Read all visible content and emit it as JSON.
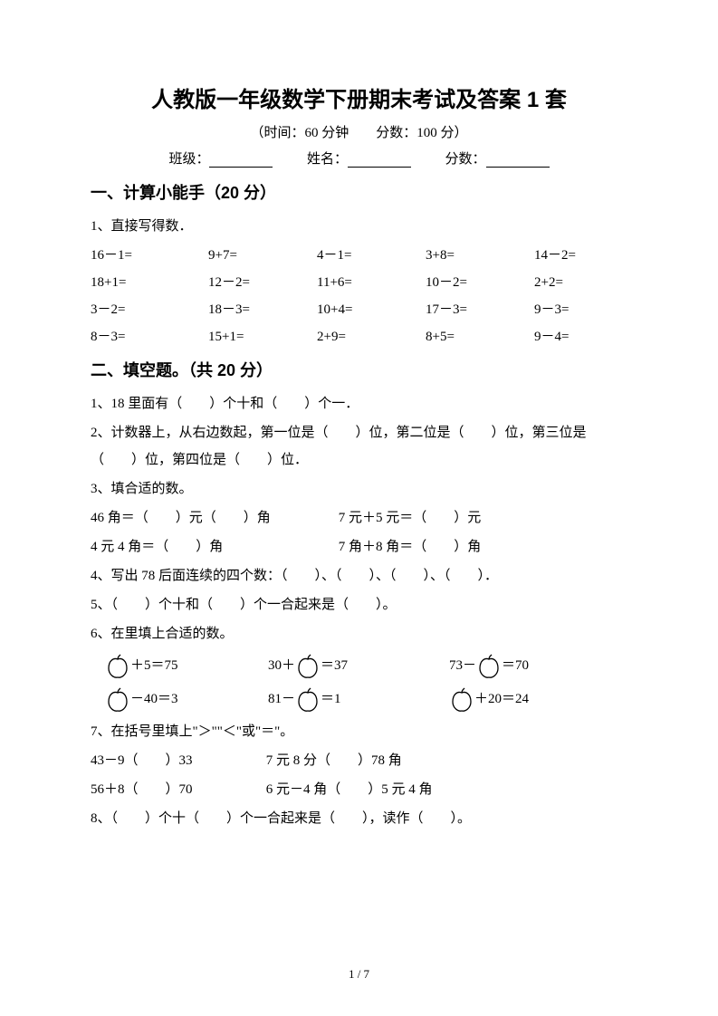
{
  "title": "人教版一年级数学下册期末考试及答案 1 套",
  "subtitle": "（时间：60 分钟　　分数：100 分）",
  "info": {
    "class_label": "班级：",
    "name_label": "姓名：",
    "score_label": "分数："
  },
  "section1": {
    "heading": "一、计算小能手（20 分）",
    "q1_label": "1、直接写得数．",
    "rows": [
      [
        "16－1=",
        "9+7=",
        "4－1=",
        "3+8=",
        "14－2="
      ],
      [
        "18+1=",
        "12－2=",
        "11+6=",
        "10－2=",
        "2+2="
      ],
      [
        "3－2=",
        "18－3=",
        "10+4=",
        "17－3=",
        "9－3="
      ],
      [
        "8－3=",
        "15+1=",
        "2+9=",
        "8+5=",
        "9－4="
      ]
    ]
  },
  "section2": {
    "heading": "二、填空题。（共 20 分）",
    "q1": "1、18 里面有（　　）个十和（　　）个一．",
    "q2": "2、计数器上，从右边数起，第一位是（　　）位，第二位是（　　）位，第三位是（　　）位，第四位是（　　）位．",
    "q3_label": "3、填合适的数。",
    "q3_line1_a": "46 角＝（　　）元（　　）角",
    "q3_line1_b": "7 元＋5 元＝（　　）元",
    "q3_line2_a": "4 元 4 角＝（　　）角",
    "q3_line2_b": "7 角＋8 角＝（　　）角",
    "q4": "4、写出 78 后面连续的四个数：（　　）、（　　）、（　　）、（　　）．",
    "q5": "5、（　　）个十和（　　）个一合起来是（　　）。",
    "q6_label": "6、在里填上合适的数。",
    "q6_row1": [
      {
        "pre": "",
        "apple": true,
        "post": "＋5＝75"
      },
      {
        "pre": "30＋",
        "apple": true,
        "post": "＝37"
      },
      {
        "pre": "73－",
        "apple": true,
        "post": "＝70"
      }
    ],
    "q6_row2": [
      {
        "pre": "",
        "apple": true,
        "post": "－40＝3"
      },
      {
        "pre": "81－",
        "apple": true,
        "post": "＝1"
      },
      {
        "pre": "",
        "apple": true,
        "post": "＋20＝24"
      }
    ],
    "q7_label": "7、在括号里填上\"＞\"\"＜\"或\"＝\"。",
    "q7_line1_a": "43－9（　　）33",
    "q7_line1_b": "7 元 8 分（　　）78 角",
    "q7_line2_a": "56＋8（　　）70",
    "q7_line2_b": "6 元－4 角（　　）5 元 4 角",
    "q8": "8、（　　）个十（　　）个一合起来是（　　），读作（　　）。"
  },
  "footer": "1 / 7",
  "apple_svg": {
    "width": 26,
    "height": 28,
    "stroke": "#000000",
    "fill": "none",
    "stroke_width": 1.3
  }
}
